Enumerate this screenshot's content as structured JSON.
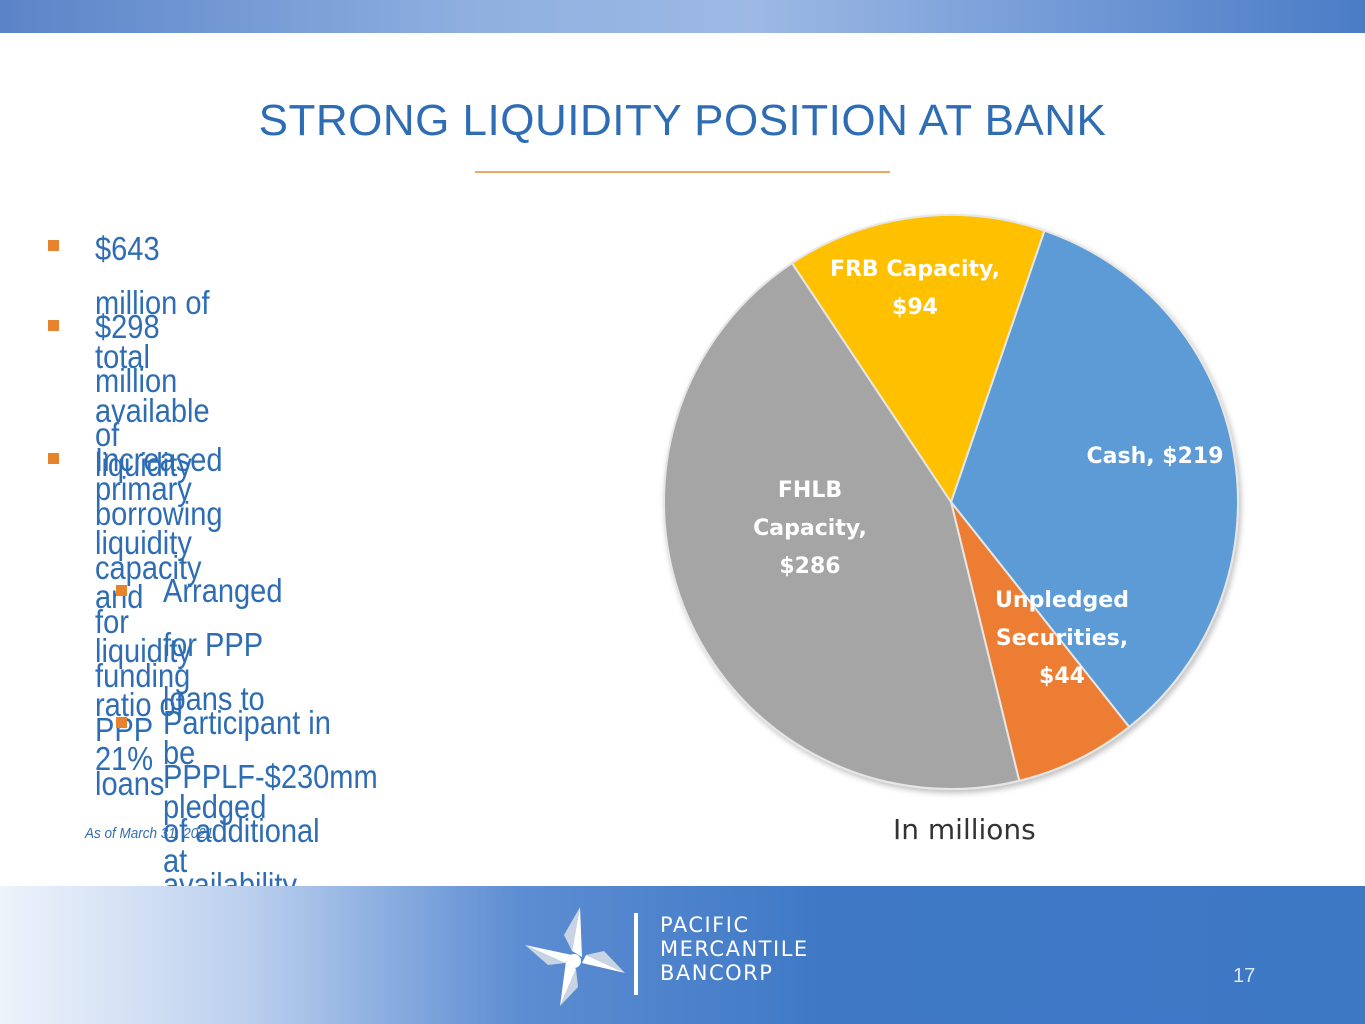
{
  "slide": {
    "title": "STRONG LIQUIDITY POSITION AT BANK",
    "page_number": "17",
    "footnote": "As of March 31, 2021",
    "unit_note": "In millions"
  },
  "bullets": [
    {
      "lines": [
        "$643 million of total available liquidity"
      ],
      "level": 1
    },
    {
      "lines": [
        "$298 million of primary liquidity and",
        "liquidity ratio of 21%"
      ],
      "level": 1
    },
    {
      "lines": [
        "Increased borrowing capacity for",
        "funding PPP loans"
      ],
      "level": 1
    },
    {
      "lines": [
        "Arranged for PPP loans to be",
        "pledged at Federal Reserve"
      ],
      "level": 2
    },
    {
      "lines": [
        "Participant in PPPLF-$230mm",
        "of additional availability"
      ],
      "level": 2
    }
  ],
  "logo": {
    "lines": [
      "PACIFIC",
      "MERCANTILE",
      "BANCORP"
    ]
  },
  "colors": {
    "title": "#2e6db4",
    "bullet_marker": "#e8832d",
    "cash": "#5b9bd5",
    "unpledged": "#ed7d31",
    "fhlb": "#a5a5a5",
    "frb": "#ffc000"
  },
  "chart_data": {
    "type": "pie",
    "title": "",
    "unit": "In millions",
    "slices": [
      {
        "name": "Cash",
        "value": 219,
        "label_lines": [
          "Cash, $219"
        ],
        "color": "#5b9bd5"
      },
      {
        "name": "Unpledged Securities",
        "value": 44,
        "label_lines": [
          "Unpledged",
          "Securities,",
          "$44"
        ],
        "color": "#ed7d31"
      },
      {
        "name": "FHLB Capacity",
        "value": 286,
        "label_lines": [
          "FHLB",
          "Capacity,",
          "$286"
        ],
        "color": "#a5a5a5"
      },
      {
        "name": "FRB Capacity",
        "value": 94,
        "label_lines": [
          "FRB Capacity,",
          "$94"
        ],
        "color": "#ffc000"
      }
    ],
    "legend": "none"
  }
}
